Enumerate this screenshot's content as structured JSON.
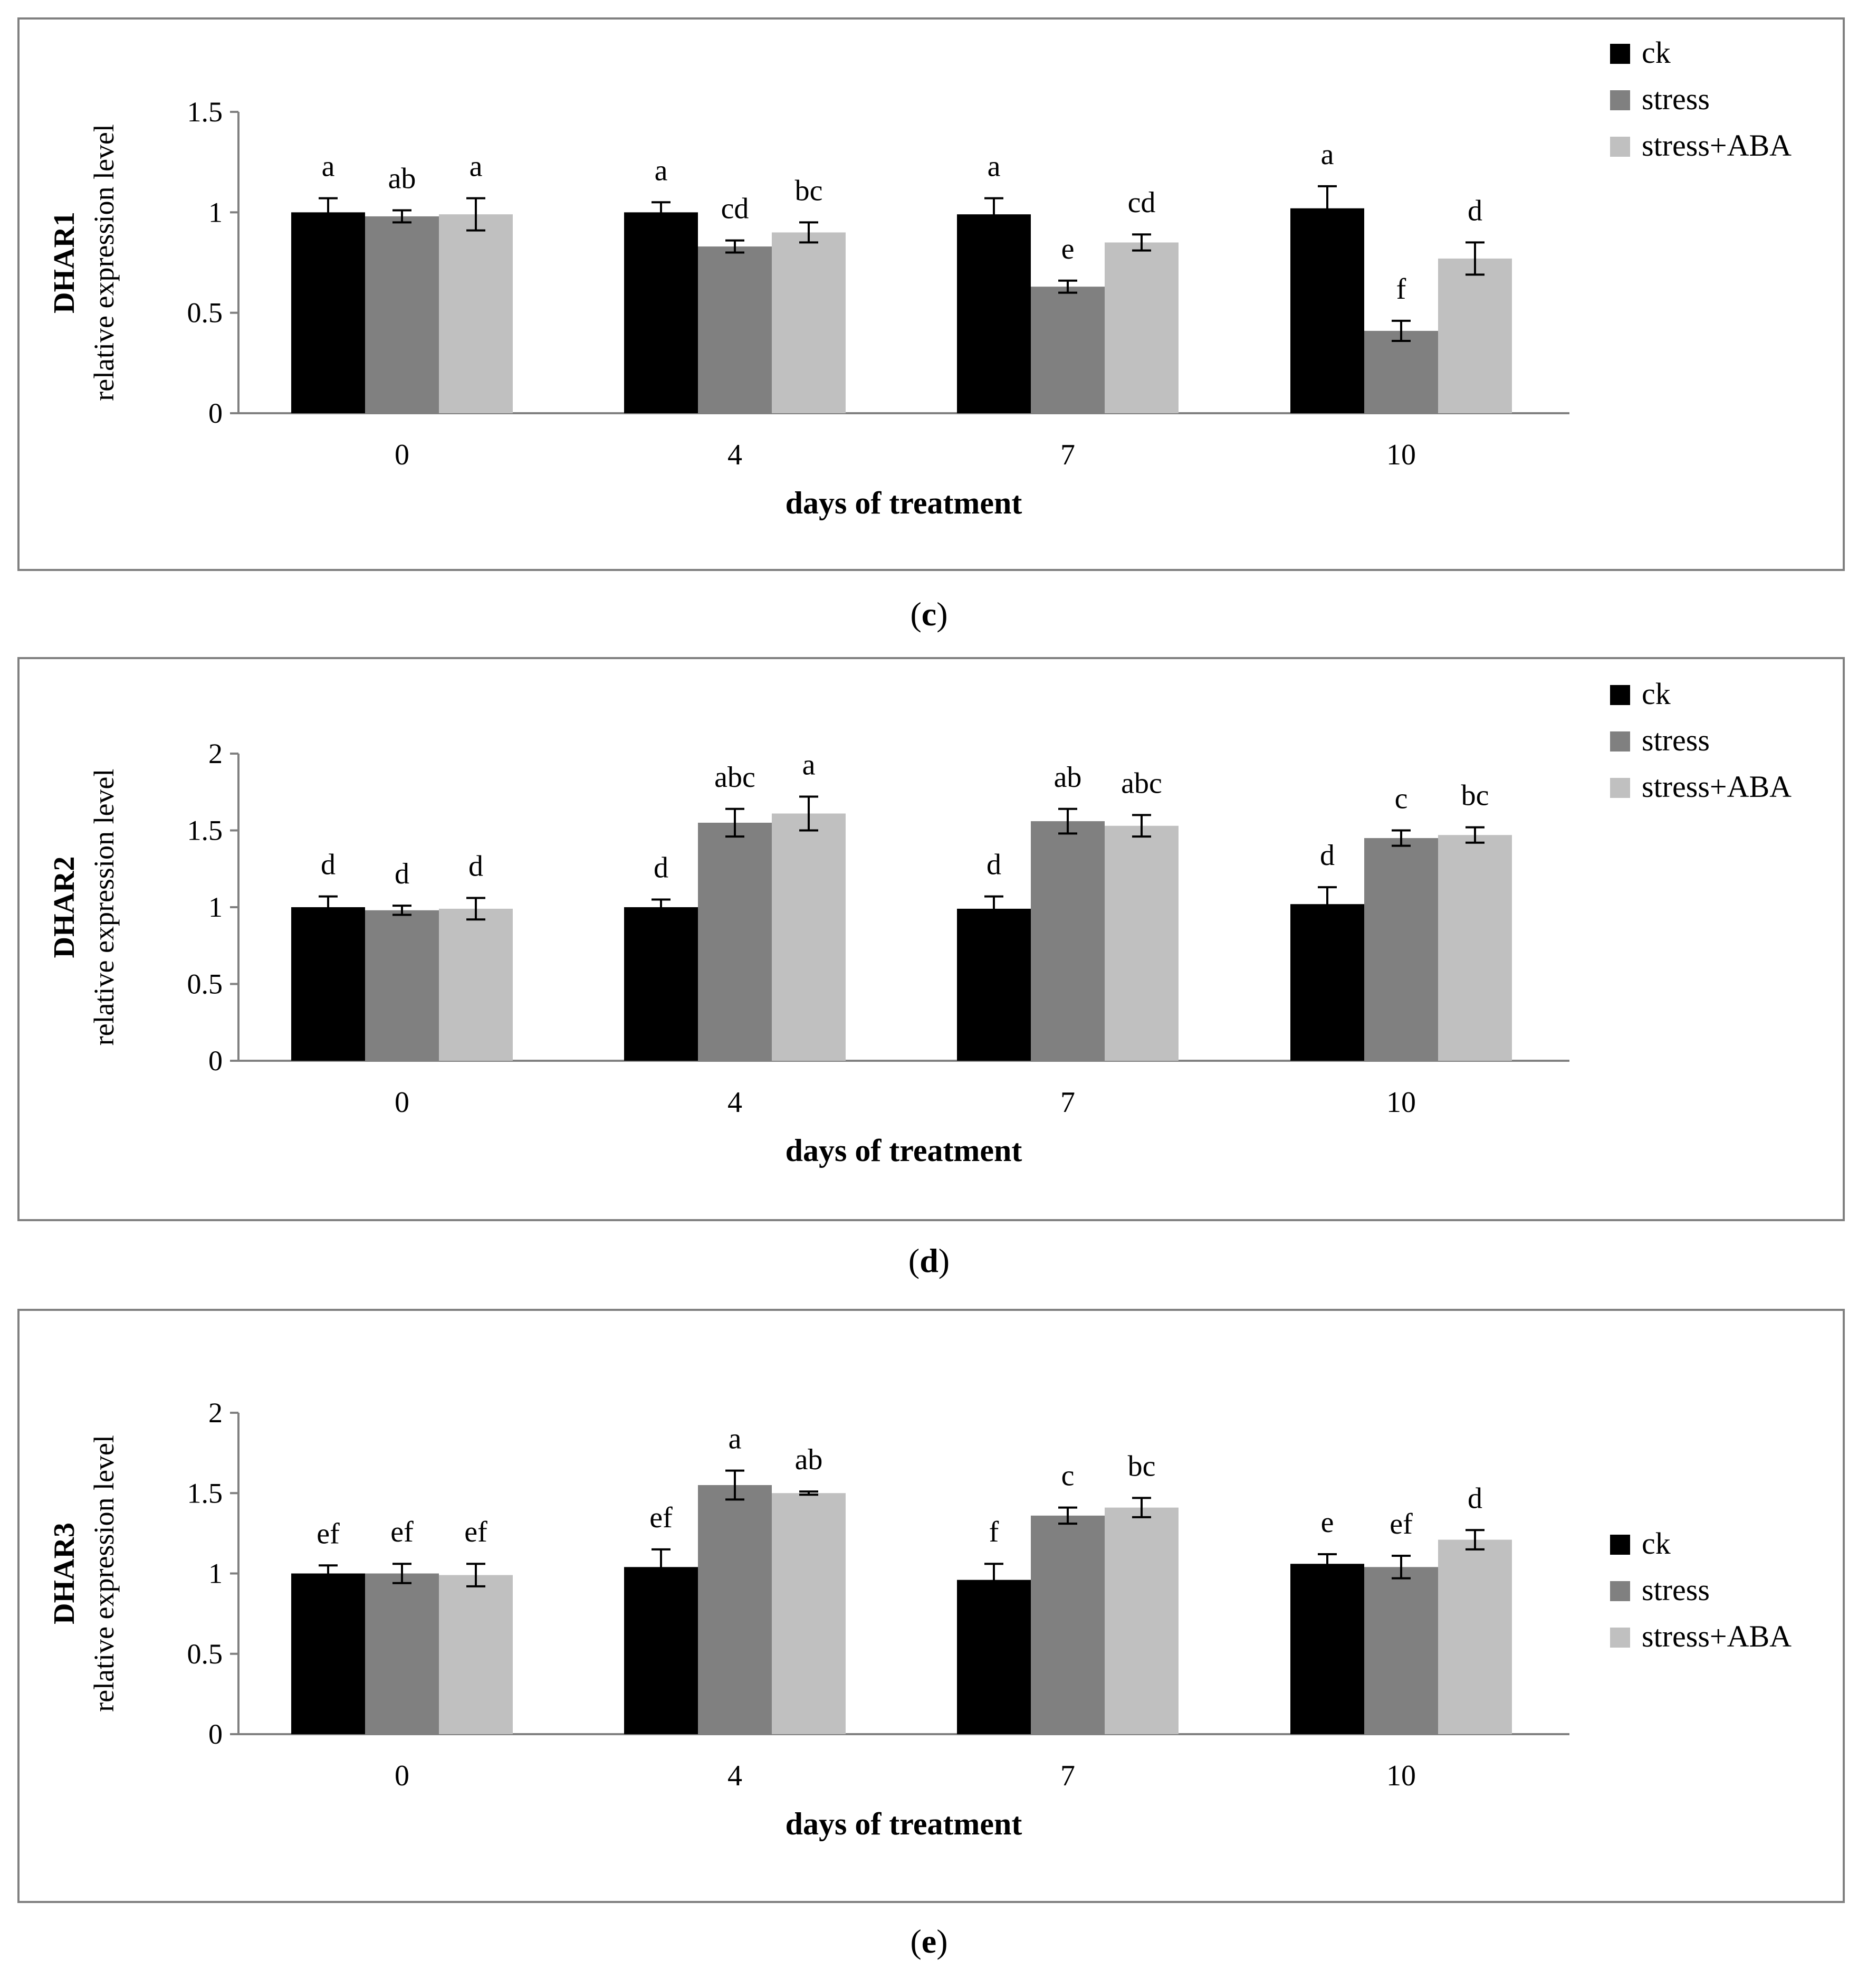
{
  "colors": {
    "ck": "#000000",
    "stress": "#808080",
    "stress_aba": "#c0c0c0",
    "frame": "#808080",
    "axis": "#808080"
  },
  "legend_labels": [
    "ck",
    "stress",
    "stress+ABA"
  ],
  "chart_data": [
    {
      "type": "bar",
      "panel_caption": "(c)",
      "caption_letter": "c",
      "gene": "DHAR1",
      "ylabel": "relative expression level",
      "xlabel": "days of treatment",
      "categories": [
        "0",
        "4",
        "7",
        "10"
      ],
      "ylim": [
        0,
        1.5
      ],
      "yticks": [
        0,
        0.5,
        1,
        1.5
      ],
      "ytick_labels": [
        "0",
        "0.5",
        "1",
        "1.5"
      ],
      "legend_position": "top-right",
      "series": [
        {
          "name": "ck",
          "values": [
            1.0,
            1.0,
            0.99,
            1.02
          ],
          "errors": [
            0.07,
            0.05,
            0.08,
            0.11
          ],
          "letters": [
            "a",
            "a",
            "a",
            "a"
          ]
        },
        {
          "name": "stress",
          "values": [
            0.98,
            0.83,
            0.63,
            0.41
          ],
          "errors": [
            0.03,
            0.03,
            0.03,
            0.05
          ],
          "letters": [
            "ab",
            "cd",
            "e",
            "f"
          ]
        },
        {
          "name": "stress+ABA",
          "values": [
            0.99,
            0.9,
            0.85,
            0.77
          ],
          "errors": [
            0.08,
            0.05,
            0.04,
            0.08
          ],
          "letters": [
            "a",
            "bc",
            "cd",
            "d"
          ]
        }
      ]
    },
    {
      "type": "bar",
      "panel_caption": "(d)",
      "caption_letter": "d",
      "gene": "DHAR2",
      "ylabel": "relative expression level",
      "xlabel": "days of treatment",
      "categories": [
        "0",
        "4",
        "7",
        "10"
      ],
      "ylim": [
        0,
        2
      ],
      "yticks": [
        0,
        0.5,
        1,
        1.5,
        2
      ],
      "ytick_labels": [
        "0",
        "0.5",
        "1",
        "1.5",
        "2"
      ],
      "legend_position": "top-right",
      "series": [
        {
          "name": "ck",
          "values": [
            1.0,
            1.0,
            0.99,
            1.02
          ],
          "errors": [
            0.07,
            0.05,
            0.08,
            0.11
          ],
          "letters": [
            "d",
            "d",
            "d",
            "d"
          ]
        },
        {
          "name": "stress",
          "values": [
            0.98,
            1.55,
            1.56,
            1.45
          ],
          "errors": [
            0.03,
            0.09,
            0.08,
            0.05
          ],
          "letters": [
            "d",
            "abc",
            "ab",
            "c"
          ]
        },
        {
          "name": "stress+ABA",
          "values": [
            0.99,
            1.61,
            1.53,
            1.47
          ],
          "errors": [
            0.07,
            0.11,
            0.07,
            0.05
          ],
          "letters": [
            "d",
            "a",
            "abc",
            "bc"
          ]
        }
      ]
    },
    {
      "type": "bar",
      "panel_caption": "(e)",
      "caption_letter": "e",
      "gene": "DHAR3",
      "ylabel": "relative expression level",
      "xlabel": "days of treatment",
      "categories": [
        "0",
        "4",
        "7",
        "10"
      ],
      "ylim": [
        0,
        2
      ],
      "yticks": [
        0,
        0.5,
        1,
        1.5,
        2
      ],
      "ytick_labels": [
        "0",
        "0.5",
        "1",
        "1.5",
        "2"
      ],
      "legend_position": "right",
      "series": [
        {
          "name": "ck",
          "values": [
            1.0,
            1.04,
            0.96,
            1.06
          ],
          "errors": [
            0.05,
            0.11,
            0.1,
            0.06
          ],
          "letters": [
            "ef",
            "ef",
            "f",
            "e"
          ]
        },
        {
          "name": "stress",
          "values": [
            1.0,
            1.55,
            1.36,
            1.04
          ],
          "errors": [
            0.06,
            0.09,
            0.05,
            0.07
          ],
          "letters": [
            "ef",
            "a",
            "c",
            "ef"
          ]
        },
        {
          "name": "stress+ABA",
          "values": [
            0.99,
            1.5,
            1.41,
            1.21
          ],
          "errors": [
            0.07,
            0.01,
            0.06,
            0.06
          ],
          "letters": [
            "ef",
            "ab",
            "bc",
            "d"
          ]
        }
      ]
    }
  ]
}
